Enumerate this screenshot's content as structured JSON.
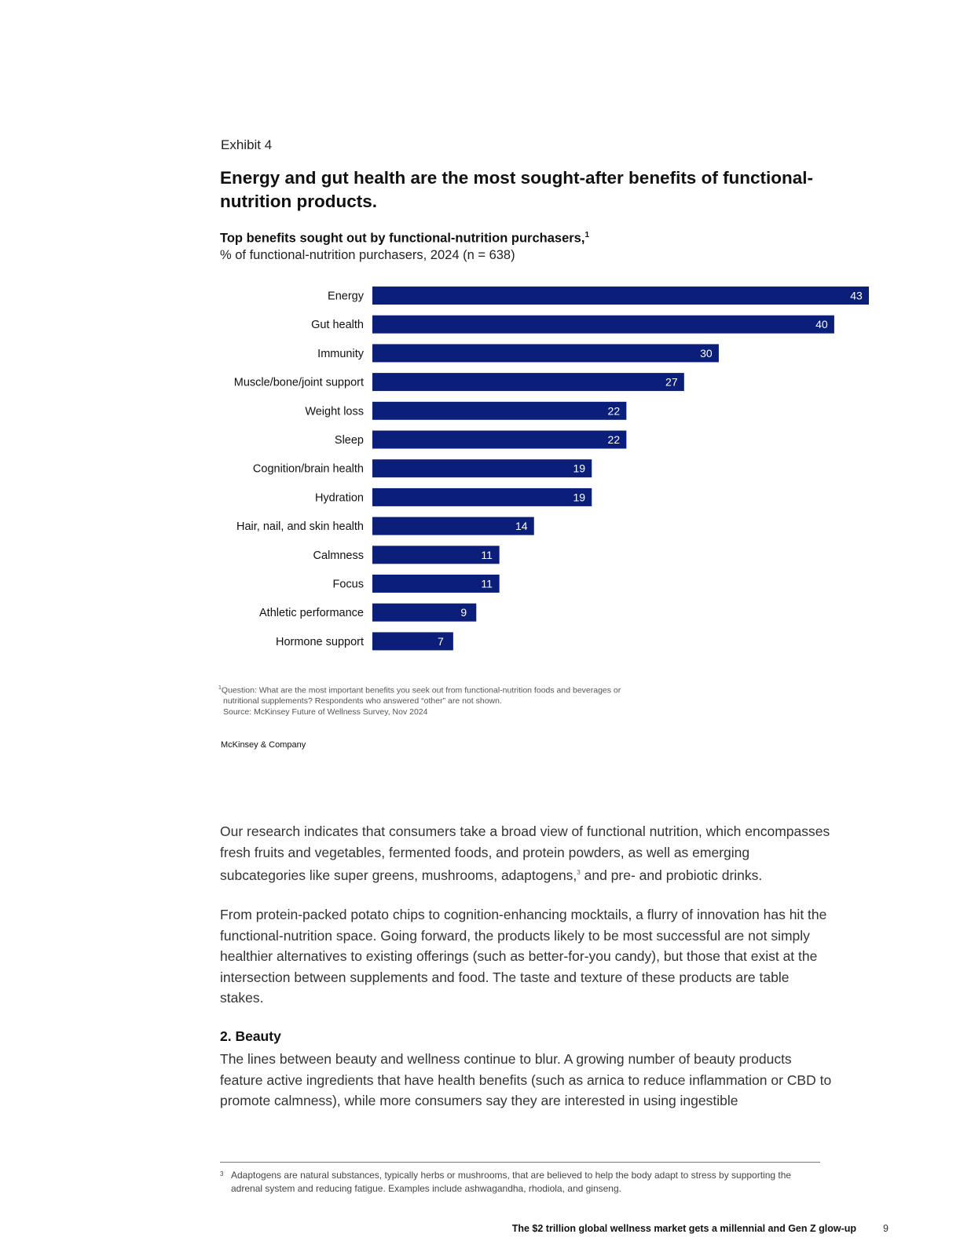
{
  "exhibit": {
    "label": "Exhibit 4",
    "headline": "Energy and gut health are the most sought-after benefits of functional-nutrition products.",
    "chart_title": "Top benefits sought out by functional-nutrition purchasers,",
    "chart_title_sup": "1",
    "chart_subtitle": "% of functional-nutrition purchasers, 2024 (n = 638)",
    "notes": {
      "sup": "1",
      "line1": "Question: What are the most important benefits you seek out from functional-nutrition foods and beverages or",
      "line2": "nutritional supplements? Respondents who answered “other” are not shown.",
      "line3": "Source: McKinsey Future of Wellness Survey, Nov 2024"
    },
    "brand": "McKinsey & Company"
  },
  "chart_data": {
    "type": "bar",
    "orientation": "horizontal",
    "title": "Top benefits sought out by functional-nutrition purchasers,",
    "subtitle": "% of functional-nutrition purchasers, 2024 (n = 638)",
    "categories": [
      "Energy",
      "Gut health",
      "Immunity",
      "Muscle/bone/joint support",
      "Weight loss",
      "Sleep",
      "Cognition/brain health",
      "Hydration",
      "Hair, nail, and skin health",
      "Calmness",
      "Focus",
      "Athletic performance",
      "Hormone support"
    ],
    "values": [
      43,
      40,
      30,
      27,
      22,
      22,
      19,
      19,
      14,
      11,
      11,
      9,
      7
    ],
    "xlim": [
      0,
      43
    ],
    "bar_color": "#0b1f7a",
    "label_color": "#ffffff",
    "grid": false,
    "legend": "none"
  },
  "body": {
    "p1_a": "Our research indicates that consumers take a broad view of functional nutrition, which encompasses fresh fruits and vegetables, fermented foods, and protein powders, as well as emerging subcategories like super greens, mushrooms, adaptogens,",
    "p1_sup": "3",
    "p1_b": " and pre- and probiotic drinks.",
    "p2": "From protein-packed potato chips to cognition-enhancing mocktails, a flurry of innovation has hit the functional-nutrition space. Going forward, the products likely to be most successful are not simply healthier alternatives to existing offerings (such as better-for-you candy), but those that exist at the intersection between supplements and food. The taste and texture of these products are table stakes.",
    "section_heading": "2. Beauty",
    "p3": "The lines between beauty and wellness continue to blur. A growing number of beauty products feature active ingredients that have health benefits (such as arnica to reduce inflammation or CBD to promote calmness), while more consumers say they are interested in using ingestible"
  },
  "footnote": {
    "number": "3",
    "text": "Adaptogens are natural substances, typically herbs or mushrooms, that are believed to help the body adapt to stress by supporting the adrenal system and reducing fatigue. Examples include ashwagandha, rhodiola, and ginseng."
  },
  "footer": {
    "title": "The $2 trillion global wellness market gets a millennial and Gen Z glow-up",
    "page": "9"
  }
}
